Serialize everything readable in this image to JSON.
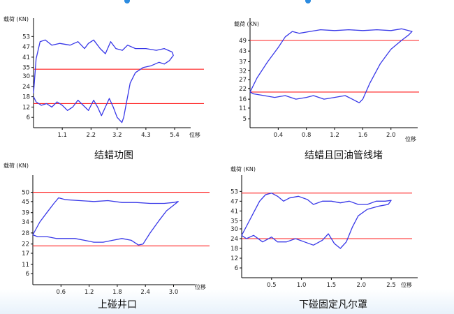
{
  "chart_data": [
    {
      "type": "line",
      "caption": "结蜡功图",
      "ylabel": "载荷 (KN)",
      "xlabel": "位移",
      "xlim": [
        0,
        5.8
      ],
      "ylim": [
        0,
        58
      ],
      "x_ticks": [
        "1.1",
        "2.2",
        "3.2",
        "4.3",
        "5.4"
      ],
      "y_ticks": [
        "53",
        "47",
        "41",
        "35",
        "30",
        "24",
        "18",
        "12",
        "6"
      ],
      "reference_lines": [
        34,
        14
      ],
      "series": [
        {
          "points": [
            [
              0,
              20
            ],
            [
              0.1,
              40
            ],
            [
              0.25,
              50
            ],
            [
              0.45,
              51
            ],
            [
              0.7,
              48
            ],
            [
              1.0,
              49
            ],
            [
              1.4,
              48
            ],
            [
              1.7,
              50
            ],
            [
              1.95,
              46
            ],
            [
              2.1,
              49
            ],
            [
              2.3,
              51
            ],
            [
              2.55,
              46
            ],
            [
              2.75,
              43
            ],
            [
              2.95,
              50
            ],
            [
              3.15,
              46
            ],
            [
              3.4,
              45
            ],
            [
              3.6,
              48
            ],
            [
              3.9,
              46
            ],
            [
              4.3,
              46
            ],
            [
              4.7,
              45
            ],
            [
              5.0,
              46
            ],
            [
              5.3,
              44
            ],
            [
              5.35,
              42
            ],
            [
              5.2,
              39
            ],
            [
              5.0,
              37
            ],
            [
              4.8,
              38
            ],
            [
              4.5,
              36
            ],
            [
              4.2,
              35
            ],
            [
              3.9,
              32
            ],
            [
              3.7,
              26
            ],
            [
              3.55,
              14
            ],
            [
              3.45,
              6
            ],
            [
              3.38,
              3
            ],
            [
              3.2,
              6
            ],
            [
              3.05,
              12
            ],
            [
              2.9,
              17
            ],
            [
              2.75,
              12
            ],
            [
              2.6,
              7
            ],
            [
              2.45,
              12
            ],
            [
              2.3,
              16
            ],
            [
              2.1,
              10
            ],
            [
              1.9,
              13
            ],
            [
              1.7,
              16
            ],
            [
              1.5,
              12
            ],
            [
              1.3,
              10
            ],
            [
              1.1,
              13
            ],
            [
              0.9,
              15
            ],
            [
              0.7,
              12
            ],
            [
              0.5,
              14
            ],
            [
              0.3,
              13
            ],
            [
              0.1,
              15
            ],
            [
              0,
              18
            ]
          ]
        }
      ],
      "grid": false
    },
    {
      "type": "line",
      "caption": "结蜡且回油管线堵",
      "ylabel": "载荷 (KN)",
      "xlabel": "位移",
      "xlim": [
        0,
        2.3
      ],
      "ylim": [
        0,
        56
      ],
      "x_ticks": [
        "0.4",
        "0.8",
        "1.2",
        "1.6",
        "2.0"
      ],
      "y_ticks": [
        "49",
        "43",
        "37",
        "32",
        "27",
        "22",
        "16",
        "11",
        "5"
      ],
      "reference_lines": [
        49,
        20
      ],
      "series": [
        {
          "points": [
            [
              0,
              20
            ],
            [
              0.1,
              28
            ],
            [
              0.25,
              37
            ],
            [
              0.4,
              45
            ],
            [
              0.5,
              51
            ],
            [
              0.6,
              54
            ],
            [
              0.7,
              53
            ],
            [
              0.85,
              54
            ],
            [
              1.0,
              55
            ],
            [
              1.2,
              54.5
            ],
            [
              1.4,
              55
            ],
            [
              1.6,
              54.5
            ],
            [
              1.8,
              55
            ],
            [
              2.0,
              54.5
            ],
            [
              2.15,
              55.5
            ],
            [
              2.3,
              54
            ],
            [
              2.25,
              52
            ],
            [
              2.15,
              49
            ],
            [
              2.0,
              44
            ],
            [
              1.85,
              36
            ],
            [
              1.7,
              25
            ],
            [
              1.6,
              16
            ],
            [
              1.55,
              14
            ],
            [
              1.45,
              16
            ],
            [
              1.35,
              18
            ],
            [
              1.2,
              17
            ],
            [
              1.05,
              16
            ],
            [
              0.9,
              18
            ],
            [
              0.8,
              17
            ],
            [
              0.65,
              16
            ],
            [
              0.5,
              18
            ],
            [
              0.35,
              17
            ],
            [
              0.2,
              18
            ],
            [
              0.05,
              19
            ],
            [
              0,
              20
            ]
          ]
        }
      ],
      "grid": false
    },
    {
      "type": "line",
      "caption": "上碰井口",
      "ylabel": "载荷 (KN)",
      "xlabel": "位移",
      "xlim": [
        0,
        3.35
      ],
      "ylim": [
        0,
        54
      ],
      "x_ticks": [
        "0.6",
        "1.2",
        "1.8",
        "2.4",
        "3.0"
      ],
      "y_ticks": [
        "50",
        "45",
        "39",
        "34",
        "28",
        "22",
        "17",
        "11",
        "6"
      ],
      "reference_lines": [
        50,
        21
      ],
      "series": [
        {
          "points": [
            [
              0,
              27
            ],
            [
              0.15,
              34
            ],
            [
              0.3,
              39
            ],
            [
              0.45,
              44
            ],
            [
              0.55,
              47
            ],
            [
              0.7,
              46
            ],
            [
              1.0,
              45.5
            ],
            [
              1.3,
              45
            ],
            [
              1.6,
              45.5
            ],
            [
              1.9,
              44.5
            ],
            [
              2.2,
              44.5
            ],
            [
              2.5,
              44
            ],
            [
              2.8,
              44
            ],
            [
              3.0,
              44.5
            ],
            [
              3.1,
              45
            ],
            [
              3.0,
              43
            ],
            [
              2.85,
              40
            ],
            [
              2.7,
              35
            ],
            [
              2.5,
              28
            ],
            [
              2.35,
              22
            ],
            [
              2.25,
              21.5
            ],
            [
              2.1,
              24
            ],
            [
              1.9,
              25
            ],
            [
              1.7,
              24
            ],
            [
              1.5,
              23
            ],
            [
              1.3,
              23
            ],
            [
              1.1,
              24
            ],
            [
              0.9,
              25
            ],
            [
              0.7,
              25
            ],
            [
              0.5,
              25
            ],
            [
              0.3,
              26
            ],
            [
              0.1,
              26
            ],
            [
              0,
              27
            ]
          ]
        }
      ],
      "grid": false
    },
    {
      "type": "line",
      "caption": "下碰固定凡尔罩",
      "ylabel": "载荷 (KN)",
      "xlabel": "位移",
      "xlim": [
        0,
        2.85
      ],
      "ylim": [
        0,
        57
      ],
      "x_ticks": [
        "0.5",
        "1.0",
        "1.5",
        "2.0",
        "2.5"
      ],
      "y_ticks": [
        "53",
        "47",
        "41",
        "35",
        "30",
        "24",
        "18",
        "12",
        "6"
      ],
      "reference_lines": [
        52,
        24
      ],
      "series": [
        {
          "points": [
            [
              0,
              26
            ],
            [
              0.1,
              33
            ],
            [
              0.2,
              40
            ],
            [
              0.3,
              47
            ],
            [
              0.4,
              51
            ],
            [
              0.5,
              52
            ],
            [
              0.6,
              50
            ],
            [
              0.7,
              47
            ],
            [
              0.8,
              49
            ],
            [
              0.95,
              50
            ],
            [
              1.1,
              48
            ],
            [
              1.2,
              45
            ],
            [
              1.35,
              47
            ],
            [
              1.5,
              47
            ],
            [
              1.65,
              46
            ],
            [
              1.8,
              47
            ],
            [
              1.95,
              45
            ],
            [
              2.1,
              45
            ],
            [
              2.25,
              47
            ],
            [
              2.4,
              47
            ],
            [
              2.5,
              47.5
            ],
            [
              2.45,
              45
            ],
            [
              2.3,
              44
            ],
            [
              2.1,
              42
            ],
            [
              1.95,
              38
            ],
            [
              1.85,
              31
            ],
            [
              1.75,
              22
            ],
            [
              1.65,
              18
            ],
            [
              1.55,
              21
            ],
            [
              1.45,
              27
            ],
            [
              1.35,
              23
            ],
            [
              1.2,
              20
            ],
            [
              1.05,
              22
            ],
            [
              0.9,
              24
            ],
            [
              0.75,
              22
            ],
            [
              0.6,
              22
            ],
            [
              0.5,
              25
            ],
            [
              0.35,
              22
            ],
            [
              0.2,
              26
            ],
            [
              0.08,
              24
            ],
            [
              0,
              26
            ]
          ]
        }
      ],
      "grid": false
    }
  ]
}
